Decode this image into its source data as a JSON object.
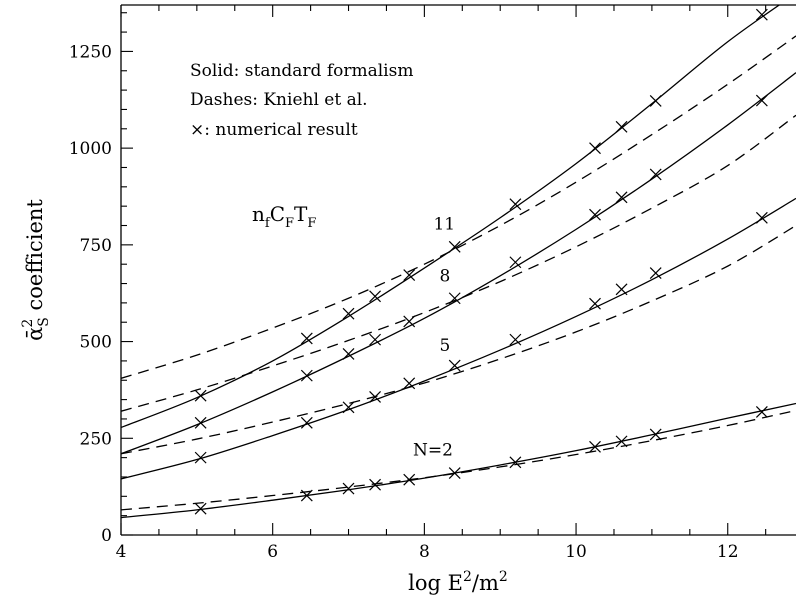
{
  "chart_data": {
    "type": "line",
    "xlabel": "log E²/m²",
    "ylabel": "ᾱ²_S coefficient",
    "ylabel_main": "ᾱ",
    "ylabel_sup": "2",
    "ylabel_sub": "S",
    "ylabel_rest": " coefficient",
    "xlabel_main": "log E",
    "xlabel_sup1": "2",
    "xlabel_mid": "/m",
    "xlabel_sup2": "2",
    "xlim": [
      4,
      12.9
    ],
    "ylim": [
      0,
      1370
    ],
    "xticks": [
      4,
      6,
      8,
      10,
      12
    ],
    "yticks": [
      0,
      250,
      500,
      750,
      1000,
      1250
    ],
    "legend": {
      "line1": "Solid: standard formalism",
      "line2": "Dashes: Kniehl et al.",
      "line3_symbol": "×",
      "line3_text": ": numerical result"
    },
    "annotation": {
      "base1": "n",
      "sub1": "f",
      "base2": "C",
      "sub2": "F",
      "base3": "T",
      "sub3": "F"
    },
    "curve_labels": [
      {
        "text": "11",
        "x": 8.12,
        "y": 790
      },
      {
        "text": "8",
        "x": 8.2,
        "y": 655
      },
      {
        "text": "5",
        "x": 8.2,
        "y": 475
      },
      {
        "text": "N=2",
        "x": 7.85,
        "y": 205
      }
    ],
    "series": [
      {
        "name": "11",
        "solid": [
          [
            4,
            278
          ],
          [
            5,
            355
          ],
          [
            6,
            450
          ],
          [
            7,
            565
          ],
          [
            8,
            690
          ],
          [
            9,
            820
          ],
          [
            10,
            960
          ],
          [
            11,
            1115
          ],
          [
            12,
            1275
          ],
          [
            12.9,
            1400
          ]
        ],
        "dashed": [
          [
            4,
            405
          ],
          [
            5,
            465
          ],
          [
            6,
            535
          ],
          [
            7,
            612
          ],
          [
            8,
            700
          ],
          [
            9,
            800
          ],
          [
            10,
            912
          ],
          [
            11,
            1035
          ],
          [
            12,
            1165
          ],
          [
            12.9,
            1290
          ]
        ],
        "markers": [
          [
            5.05,
            360
          ],
          [
            6.45,
            508
          ],
          [
            7.0,
            572
          ],
          [
            7.35,
            617
          ],
          [
            7.8,
            672
          ],
          [
            8.4,
            745
          ],
          [
            9.2,
            855
          ],
          [
            10.25,
            1000
          ],
          [
            10.6,
            1055
          ],
          [
            11.05,
            1122
          ],
          [
            12.45,
            1345
          ]
        ]
      },
      {
        "name": "8",
        "solid": [
          [
            4,
            210
          ],
          [
            5,
            285
          ],
          [
            6,
            370
          ],
          [
            7,
            462
          ],
          [
            8,
            560
          ],
          [
            9,
            670
          ],
          [
            10,
            790
          ],
          [
            11,
            920
          ],
          [
            12,
            1060
          ],
          [
            12.9,
            1195
          ]
        ],
        "dashed": [
          [
            4,
            320
          ],
          [
            5,
            375
          ],
          [
            6,
            437
          ],
          [
            7,
            503
          ],
          [
            8,
            575
          ],
          [
            9,
            655
          ],
          [
            10,
            745
          ],
          [
            11,
            845
          ],
          [
            12,
            955
          ],
          [
            12.9,
            1085
          ]
        ],
        "markers": [
          [
            5.05,
            290
          ],
          [
            6.45,
            412
          ],
          [
            7.0,
            468
          ],
          [
            7.35,
            505
          ],
          [
            7.8,
            552
          ],
          [
            8.4,
            612
          ],
          [
            9.2,
            705
          ],
          [
            10.25,
            828
          ],
          [
            10.6,
            873
          ],
          [
            11.05,
            932
          ],
          [
            12.45,
            1123
          ]
        ]
      },
      {
        "name": "5",
        "solid": [
          [
            4,
            145
          ],
          [
            5,
            195
          ],
          [
            6,
            257
          ],
          [
            7,
            324
          ],
          [
            8,
            398
          ],
          [
            9,
            478
          ],
          [
            10,
            565
          ],
          [
            11,
            660
          ],
          [
            12,
            765
          ],
          [
            12.9,
            870
          ]
        ],
        "dashed": [
          [
            4,
            210
          ],
          [
            5,
            248
          ],
          [
            6,
            292
          ],
          [
            7,
            340
          ],
          [
            8,
            393
          ],
          [
            9,
            455
          ],
          [
            10,
            525
          ],
          [
            11,
            605
          ],
          [
            12,
            695
          ],
          [
            12.9,
            800
          ]
        ],
        "markers": [
          [
            5.05,
            200
          ],
          [
            6.45,
            290
          ],
          [
            7.0,
            330
          ],
          [
            7.35,
            357
          ],
          [
            7.8,
            392
          ],
          [
            8.4,
            438
          ],
          [
            9.2,
            505
          ],
          [
            10.25,
            598
          ],
          [
            10.6,
            635
          ],
          [
            11.05,
            677
          ],
          [
            12.45,
            820
          ]
        ]
      },
      {
        "name": "N=2",
        "solid": [
          [
            4,
            45
          ],
          [
            5,
            65
          ],
          [
            6,
            90
          ],
          [
            7,
            117
          ],
          [
            8,
            147
          ],
          [
            9,
            181
          ],
          [
            10,
            218
          ],
          [
            11,
            259
          ],
          [
            12,
            302
          ],
          [
            12.9,
            340
          ]
        ],
        "dashed": [
          [
            4,
            65
          ],
          [
            5,
            82
          ],
          [
            6,
            102
          ],
          [
            7,
            124
          ],
          [
            8,
            148
          ],
          [
            9,
            176
          ],
          [
            10,
            208
          ],
          [
            11,
            244
          ],
          [
            12,
            283
          ],
          [
            12.9,
            322
          ]
        ],
        "markers": [
          [
            5.05,
            68
          ],
          [
            6.45,
            102
          ],
          [
            7.0,
            120
          ],
          [
            7.35,
            130
          ],
          [
            7.8,
            143
          ],
          [
            8.4,
            160
          ],
          [
            9.2,
            188
          ],
          [
            10.25,
            228
          ],
          [
            10.6,
            242
          ],
          [
            11.05,
            260
          ],
          [
            12.45,
            318
          ]
        ]
      }
    ]
  }
}
